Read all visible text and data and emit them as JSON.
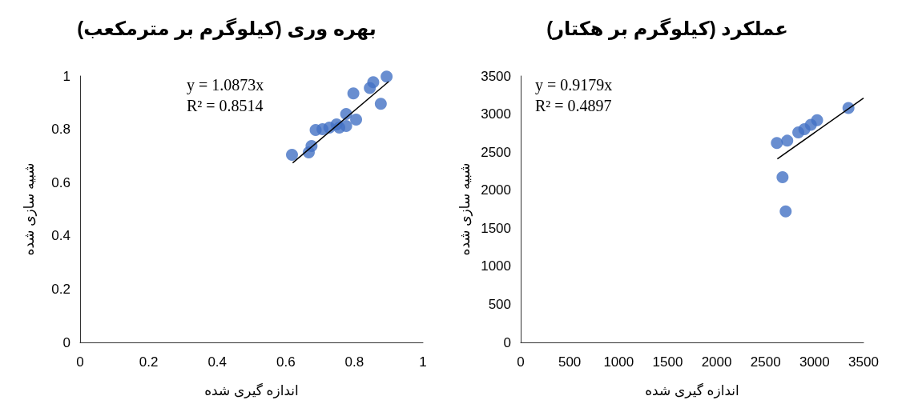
{
  "chart_data": [
    {
      "type": "scatter",
      "title": "بهره وری (کیلوگرم بر مترمکعب)",
      "xlabel": "اندازه گیری شده",
      "ylabel": "شبیه سازی شده",
      "annotations": [
        "y = 1.0873x",
        "R² = 0.8514"
      ],
      "marker": "circle",
      "grid": false,
      "xlim": [
        0,
        1
      ],
      "xticks": [
        0,
        0.2,
        0.4,
        0.6,
        0.8,
        1
      ],
      "ylim": [
        0,
        1
      ],
      "yticks": [
        0,
        0.2,
        0.4,
        0.6,
        0.8,
        1
      ],
      "series": [
        {
          "color": "#4472c4",
          "x": [
            0.618,
            0.667,
            0.675,
            0.687,
            0.707,
            0.727,
            0.748,
            0.756,
            0.776,
            0.776,
            0.805,
            0.797,
            0.845,
            0.855,
            0.877,
            0.894
          ],
          "values": [
            0.704,
            0.713,
            0.737,
            0.797,
            0.8,
            0.806,
            0.818,
            0.806,
            0.812,
            0.857,
            0.836,
            0.935,
            0.955,
            0.977,
            0.896,
            0.998
          ]
        },
        {
          "type": "line",
          "color": "#000000",
          "marker": "none",
          "line_style": "solid",
          "x": [
            0.62,
            0.9
          ],
          "values": [
            0.674,
            0.979
          ]
        }
      ]
    },
    {
      "type": "scatter",
      "title": "عملکرد (کیلوگرم بر هکتار)",
      "xlabel": "اندازه گیری شده",
      "ylabel": "شبیه سازی شده",
      "annotations": [
        "y = 0.9179x",
        "R² = 0.4897"
      ],
      "marker": "circle",
      "grid": false,
      "xlim": [
        0,
        3500
      ],
      "xticks": [
        0,
        500,
        1000,
        1500,
        2000,
        2500,
        3000,
        3500
      ],
      "ylim": [
        0,
        3500
      ],
      "yticks": [
        0,
        500,
        1000,
        1500,
        2000,
        2500,
        3000,
        3500
      ],
      "series": [
        {
          "color": "#4472c4",
          "x": [
            2615,
            2721,
            2834,
            2896,
            2962,
            3026,
            3346,
            2673,
            2705
          ],
          "values": [
            2620,
            2650,
            2760,
            2800,
            2860,
            2920,
            3080,
            2170,
            1720
          ]
        },
        {
          "type": "line",
          "color": "#000000",
          "marker": "none",
          "line_style": "solid",
          "x": [
            2620,
            3500
          ],
          "values": [
            2410,
            3210
          ]
        }
      ]
    }
  ]
}
